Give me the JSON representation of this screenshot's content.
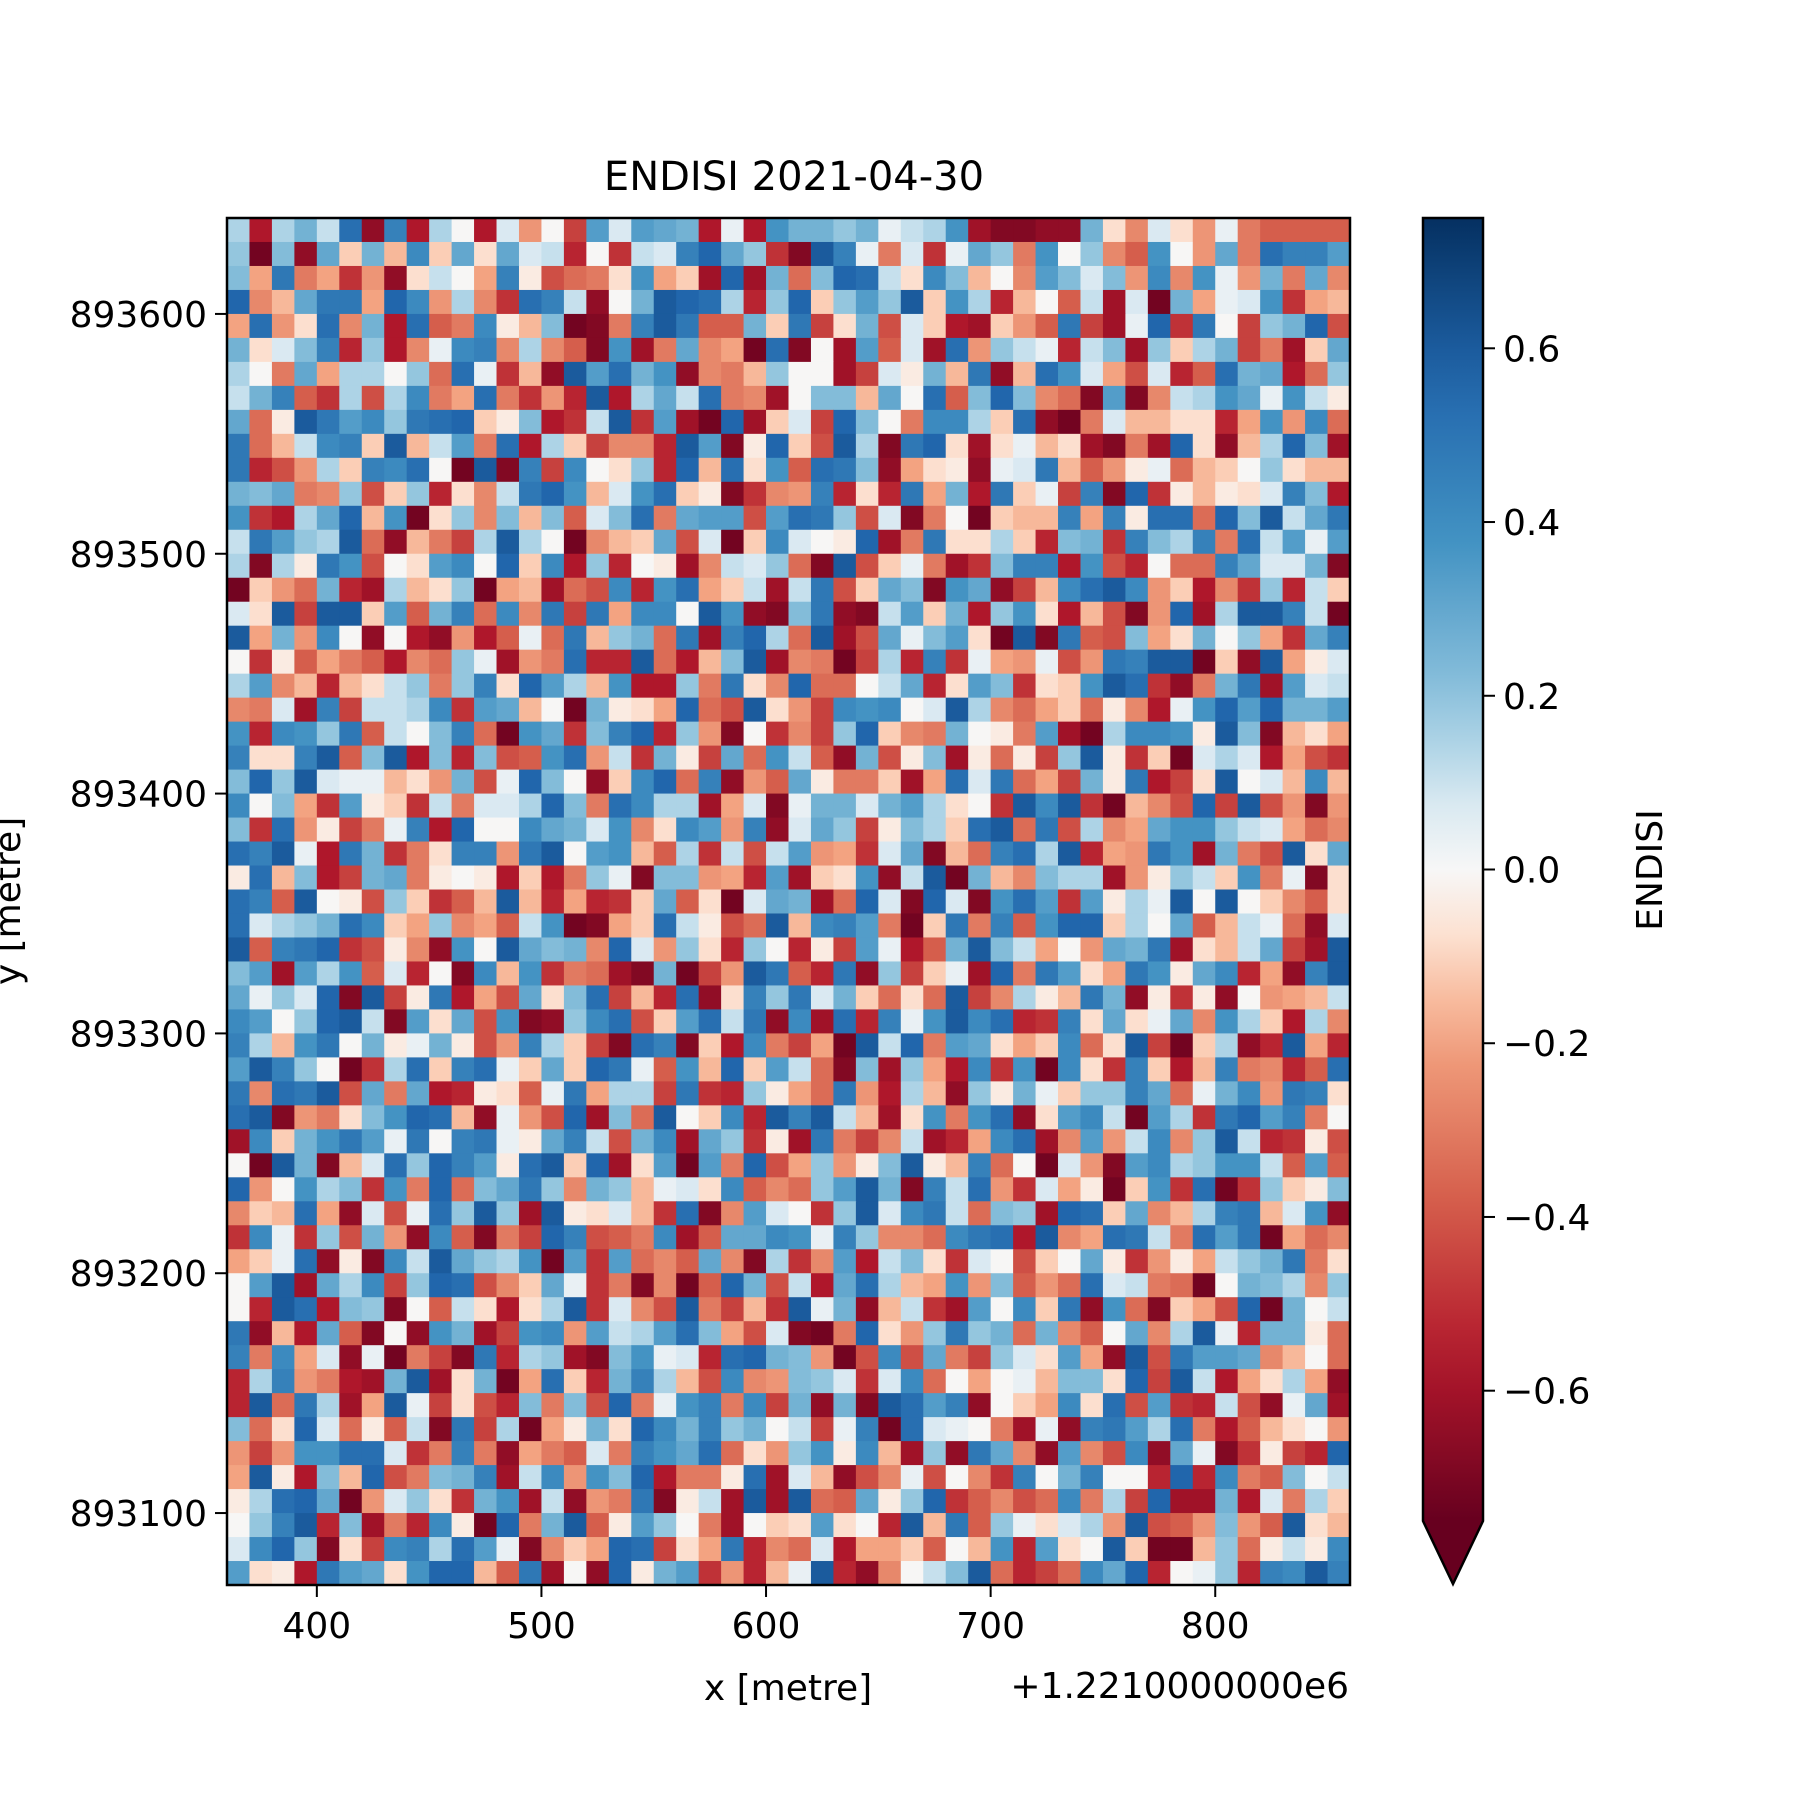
{
  "chart_data": {
    "type": "heatmap",
    "title": "ENDISI 2021-04-30",
    "xlabel": "x [metre]",
    "ylabel": "y [metre]",
    "x_offset_label": "+1.2210000000e6",
    "xlim": [
      360,
      860
    ],
    "ylim": [
      893070,
      893640
    ],
    "x_ticks": [
      400,
      500,
      600,
      700,
      800
    ],
    "x_tick_labels": [
      "400",
      "500",
      "600",
      "700",
      "800"
    ],
    "y_ticks": [
      893100,
      893200,
      893300,
      893400,
      893500,
      893600
    ],
    "y_tick_labels": [
      "893100",
      "893200",
      "893300",
      "893400",
      "893500",
      "893600"
    ],
    "colormap": "RdBu",
    "color_low": "#67001f",
    "color_mid": "#f7f7f7",
    "color_high": "#053061",
    "colorbar": {
      "label": "ENDISI",
      "vmin": -0.75,
      "vmax": 0.75,
      "extend": "min",
      "ticks": [
        -0.6,
        -0.4,
        -0.2,
        0.0,
        0.2,
        0.4,
        0.6
      ],
      "tick_labels": [
        "−0.6",
        "−0.4",
        "−0.2",
        "0.0",
        "0.2",
        "0.4",
        "0.6"
      ]
    },
    "grid": false,
    "grid_shape": [
      57,
      50
    ],
    "z_decimals": 2,
    "z_rows": [
      "N4NQMX2V4NJ4LDJ7SLSRQ4K4TQQOQKMNT31122QHCLHDKB9999",
      "O0P2RGQFUGRHRLM5J6MLVYRO61ZVKBL6KROBTJOC9TJDRBXVVS",
      "PEWBE6D2HMJEVI8ABHTEG3Y3QAPYXMHUPFJCSPLPDUCTKDQBRC",
      "YCFRWWEYUDNC6XVM2JQZYXN5OYGOSOZGTN5FJ9M3L0QEKLT6EF",
      "EXDHXCQ4X9BUIFP01BVZW99QGW7HQ8LG43GD9W73KY6WJ7OQY8",
      "QHLPV5O4CKUVCNC91T3BRCE0X1J3S9L3XDOMK5MP3OGNQ7B3GR",
      "NJBRENNJOAXK6F2ZSXQT2CBFOJJ37LIQFW2FXTLE8L59XQR4AO",
      "MQV96N8NUBEXB6D5Z4NRMXBC3JPPFRJX9PYPCA1S1CMNTRKTMI",
      "RAIZWSUOWXYGIP46MZ6S30Y3GL7YPJBUUNGX20BLFFHH5ETDUA",
      "WAFMUVGZFMSBX4NG7CC5ZS1IYG8ZN1WYH3HKFH31B3YH2FNYP3",
      "W58DNGVUXJ0Z1V7UJHO5YFXHT9XWP2EHI2KLWF9DIKAFGJOHFF",
      "QPRBCO8GO5HCMWYTFLTXGI16CDV5H5WEQ4WGK7V1Y6IFIHLVP4",
      "T64NRYFT0HOCPFP9LPXBRSS8SXWO8L1BJ0GFFVEVIXXAYPZMRW",
      "MWSONZA2FB7NZNJ0CFGR8L0GULJIY3BWHHNG5PQ6VPNVBXMSKS",
      "N1NIWT8JHSUJYGU4O5JI3CMLOA1Z8GKB36PVV4T85JAAVRLLQ1",
      "0GDAQ53NFHO0EF3A8U5TXEGM3MW8GRP1TR27FUXZUDG4C6O5MG",
      "LHZ7ZZGS9QVAUCW7WEUUJZT21PW21MSGQ4OTH4F81DY3NZZVM0",
      "ZEQDUJ2J42D49KAWFOQAW3VYNAZ38RKPSH0Z1W98PEHQJOE6RV",
      "J6I9EB94CAOK3DBX55ZA4FPZ3CB07N5V6KEDK8DWVZZ0G2ZEIL",
      "NSCF5FHMOBOVHYSNFT44OBWHCYAAJMR5HSP6HGTZX62BQW3SLM",
      "CBL3V7MMNU6SRFJ0QIHEYA8ZHD7UTUJLZNCAEGAIC4KTYSYQQS",
      "T5UTOW9MJPVA0TR6PVY5OD1J6C7OYGCBQJIBS30NUUTIZP1FHE",
      "VHHVZ9PZ4P5P89TXDM6QI7RATM92Q8IP3IAI7OZI6G0LNL4E86",
      "PYOZLKKFHDQ8KYPJ2GUYAV2D9RIBBG3EXLWAE7QIW47HZJLFUF",
      "UJPE6SIG6MBLLNYPBXUNN3EL1KQQLQSNHJ6ZUZ60FC8Y7Z8D1D",
      "P6XDI7BKV4YJJURQLTCHUSDV2LRO7IPNGXZAW8NCERTTOMLEAC",
      "XVZK4WQ6BHVVDWZJSTF9N6M8MSDE6LR1FAVXNZ5EDWT3QB8ZHR",
      "IXFP47QRBIJI4G4BOK1PPDE5S3GHT2MZ0QFCPNN3DIOMGTBK1H",
      "XV9ZJI8OG69FZF5E56GR9H0LRQ3AYL1YL1TXS6SINKZJZJGC9H",
      "XLNOQXUGEOCE9MT01EGXMI8AZFUVSB0GWBV9TYYGNJR9FMKA2L",
      "Z9VWY68IC2TJZRPQCYLDOH5OJ5I7SK49QZPMEJDRQW3HFMR73Z",
      "PS3SNT9L5J1UFT6BA31Q07DZW95W2O7GK3YBWSHEWTIRU5E2VZ",
      "RKOLY1Z7IW4E8RHPX7F5X2HVOWLQGAHAZ7CNIFWQ2I6I2JDEFM",
      "USJOYZM1SHR8T12OUX8GSXMW2U3X5VKTZUX56VHRHKRCTNG4NC",
      "VNFTWJQIKQI8DVNG71XV1G4UB7E0ZMYBSRHEGUAHZ70GN25ZE5",
      "SZVOJ06NXGVXKGRGYWK9TFYGSMA1P3OE4U6T0UH6VG4FVBC59X",
      "WCXWZ8RBR45IH9KWENN7W65OIEAWD4NF2OIQKGOOVRAKQUDWVH",
      "XZ1DBHPTYXF2KD8Y3PAZJGU5ZVZMF3HTBTX2HSUM0SN6WYSVBJ",
      "3UGQTWSKWJVWKIRVM8QU3RO6I3WB7CM35EUX3CSDMUCOZM56I8",
      "J0ZQ1FLXOYVSIXZGY3HS0SBY8EODIPZIFVAJ0LD1SUNOTTM9S9",
      "YDJTNP6TBYAPRWOCQOFKLHU9CAOSZQ1VMXD6LEI0GT6X06OGIP",
      "CGFXE2L8KXOZO3ZIHLF6X1CSLJ6OZLUWMAPO3YXGRCFNVWFLT2",
      "6UK6O8QD2U91B7YV89BU39RRUTKVOCCAUWX4ZCEXWMBXSW0EAC",
      "EGKX2I1UMZRONT0S6SAC9RC1N6CS4MPH6LJ8GJRI6DIEMOQWBH",
      "JSZ3RNU7OYX8CGRK6B1C09YQ8M4RXNFETDP9DAXLMBA0JQPNCO",
      "J5ZX4PO1J9MH4HNZ6LC8ZB7F6ZKQ2FM63SJUGW2TA1GE8Y0QJM",
      "W2F4R91J2TQ37TUDSMNSXPE8L10BYHDOWOQAQC9JRCNZK5QQIA",
      "VBUEL2K0B71W5NO31PTKL5XYQPD08U8RB7OLHSE2Z8WSSRCFJA",
      "5NVDB43QZ3HQ0EXG5QVNF8UCDPOL6LUAJEJKFPPHY7ZM4EHNE2",
      "5ZAWN3EZK7H85PBP8YBKTVBU7Q2Q1ZXSV2JGEUHX8S65M82KR3",
      "PAHYLAI9M1W7N0EIQHYUQVOQJM7KV0XLKJB3K2VWSNXB49FHJD",
      "D7DTTXXL6BVB2EB9LBVTRXAHDOTIUF3O2WRC2SC8U2RK16I75Y",
      "EZI4PFY8BPQV3MUDTPY4BBIX3LF28CK8JC6VJQVJJ5Y5UB9PJM",
      "INXYR0DLOH6QT3M2DBW1IM3Z3ZA9RIOY69C8AUBN7Y33Q4LBNG",
      "JOVZ5P3B5UI0YBQZ9ISOJB3JGHSHJ5ZFW9OKHLNDZ89DPD9ZHF",
      "LUYO1H7UVNXSK1CGEYX7HEW5CAL4EEG9JFT5SHJZG00FOAIMIU",
      "SHI4WSRHTYYF9W3J2YIQS6D5FKZ52CJMPZA57AURY5JKO5VUZV"
    ]
  }
}
